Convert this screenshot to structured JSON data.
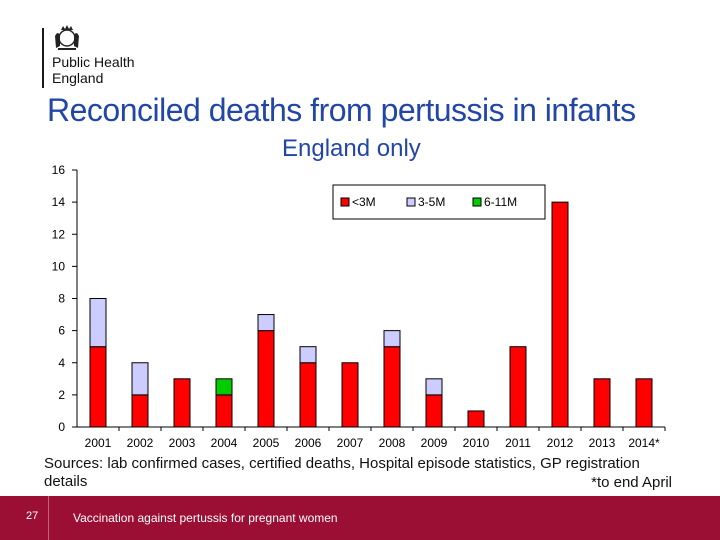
{
  "header": {
    "org_line1": "Public Health",
    "org_line2": "England",
    "title": "Reconciled deaths from pertussis in infants",
    "subtitle": "England only"
  },
  "chart_data": {
    "type": "bar",
    "stacked": true,
    "categories": [
      "2001",
      "2002",
      "2003",
      "2004",
      "2005",
      "2006",
      "2007",
      "2008",
      "2009",
      "2010",
      "2011",
      "2012",
      "2013",
      "2014*"
    ],
    "series": [
      {
        "name": "<3M",
        "color": "#ff0000",
        "values": [
          5,
          2,
          3,
          2,
          6,
          4,
          4,
          5,
          2,
          1,
          5,
          14,
          3,
          3
        ]
      },
      {
        "name": "3-5M",
        "color": "#ccccff",
        "values": [
          3,
          2,
          0,
          0,
          1,
          1,
          0,
          1,
          1,
          0,
          0,
          0,
          0,
          0
        ]
      },
      {
        "name": "6-11M",
        "color": "#00cc00",
        "values": [
          0,
          0,
          0,
          1,
          0,
          0,
          0,
          0,
          0,
          0,
          0,
          0,
          0,
          0
        ]
      }
    ],
    "ylim": [
      0,
      16
    ],
    "yticks": [
      0,
      2,
      4,
      6,
      8,
      10,
      12,
      14,
      16
    ],
    "legend_position": "top-right",
    "xlabel": "",
    "ylabel": ""
  },
  "sources": {
    "text": "Sources: lab confirmed cases, certified deaths, Hospital episode statistics, GP registration details",
    "note": "*to end April"
  },
  "footer": {
    "page_number": "27",
    "caption": "Vaccination against pertussis for pregnant women",
    "bar_color": "#9c0f34"
  }
}
